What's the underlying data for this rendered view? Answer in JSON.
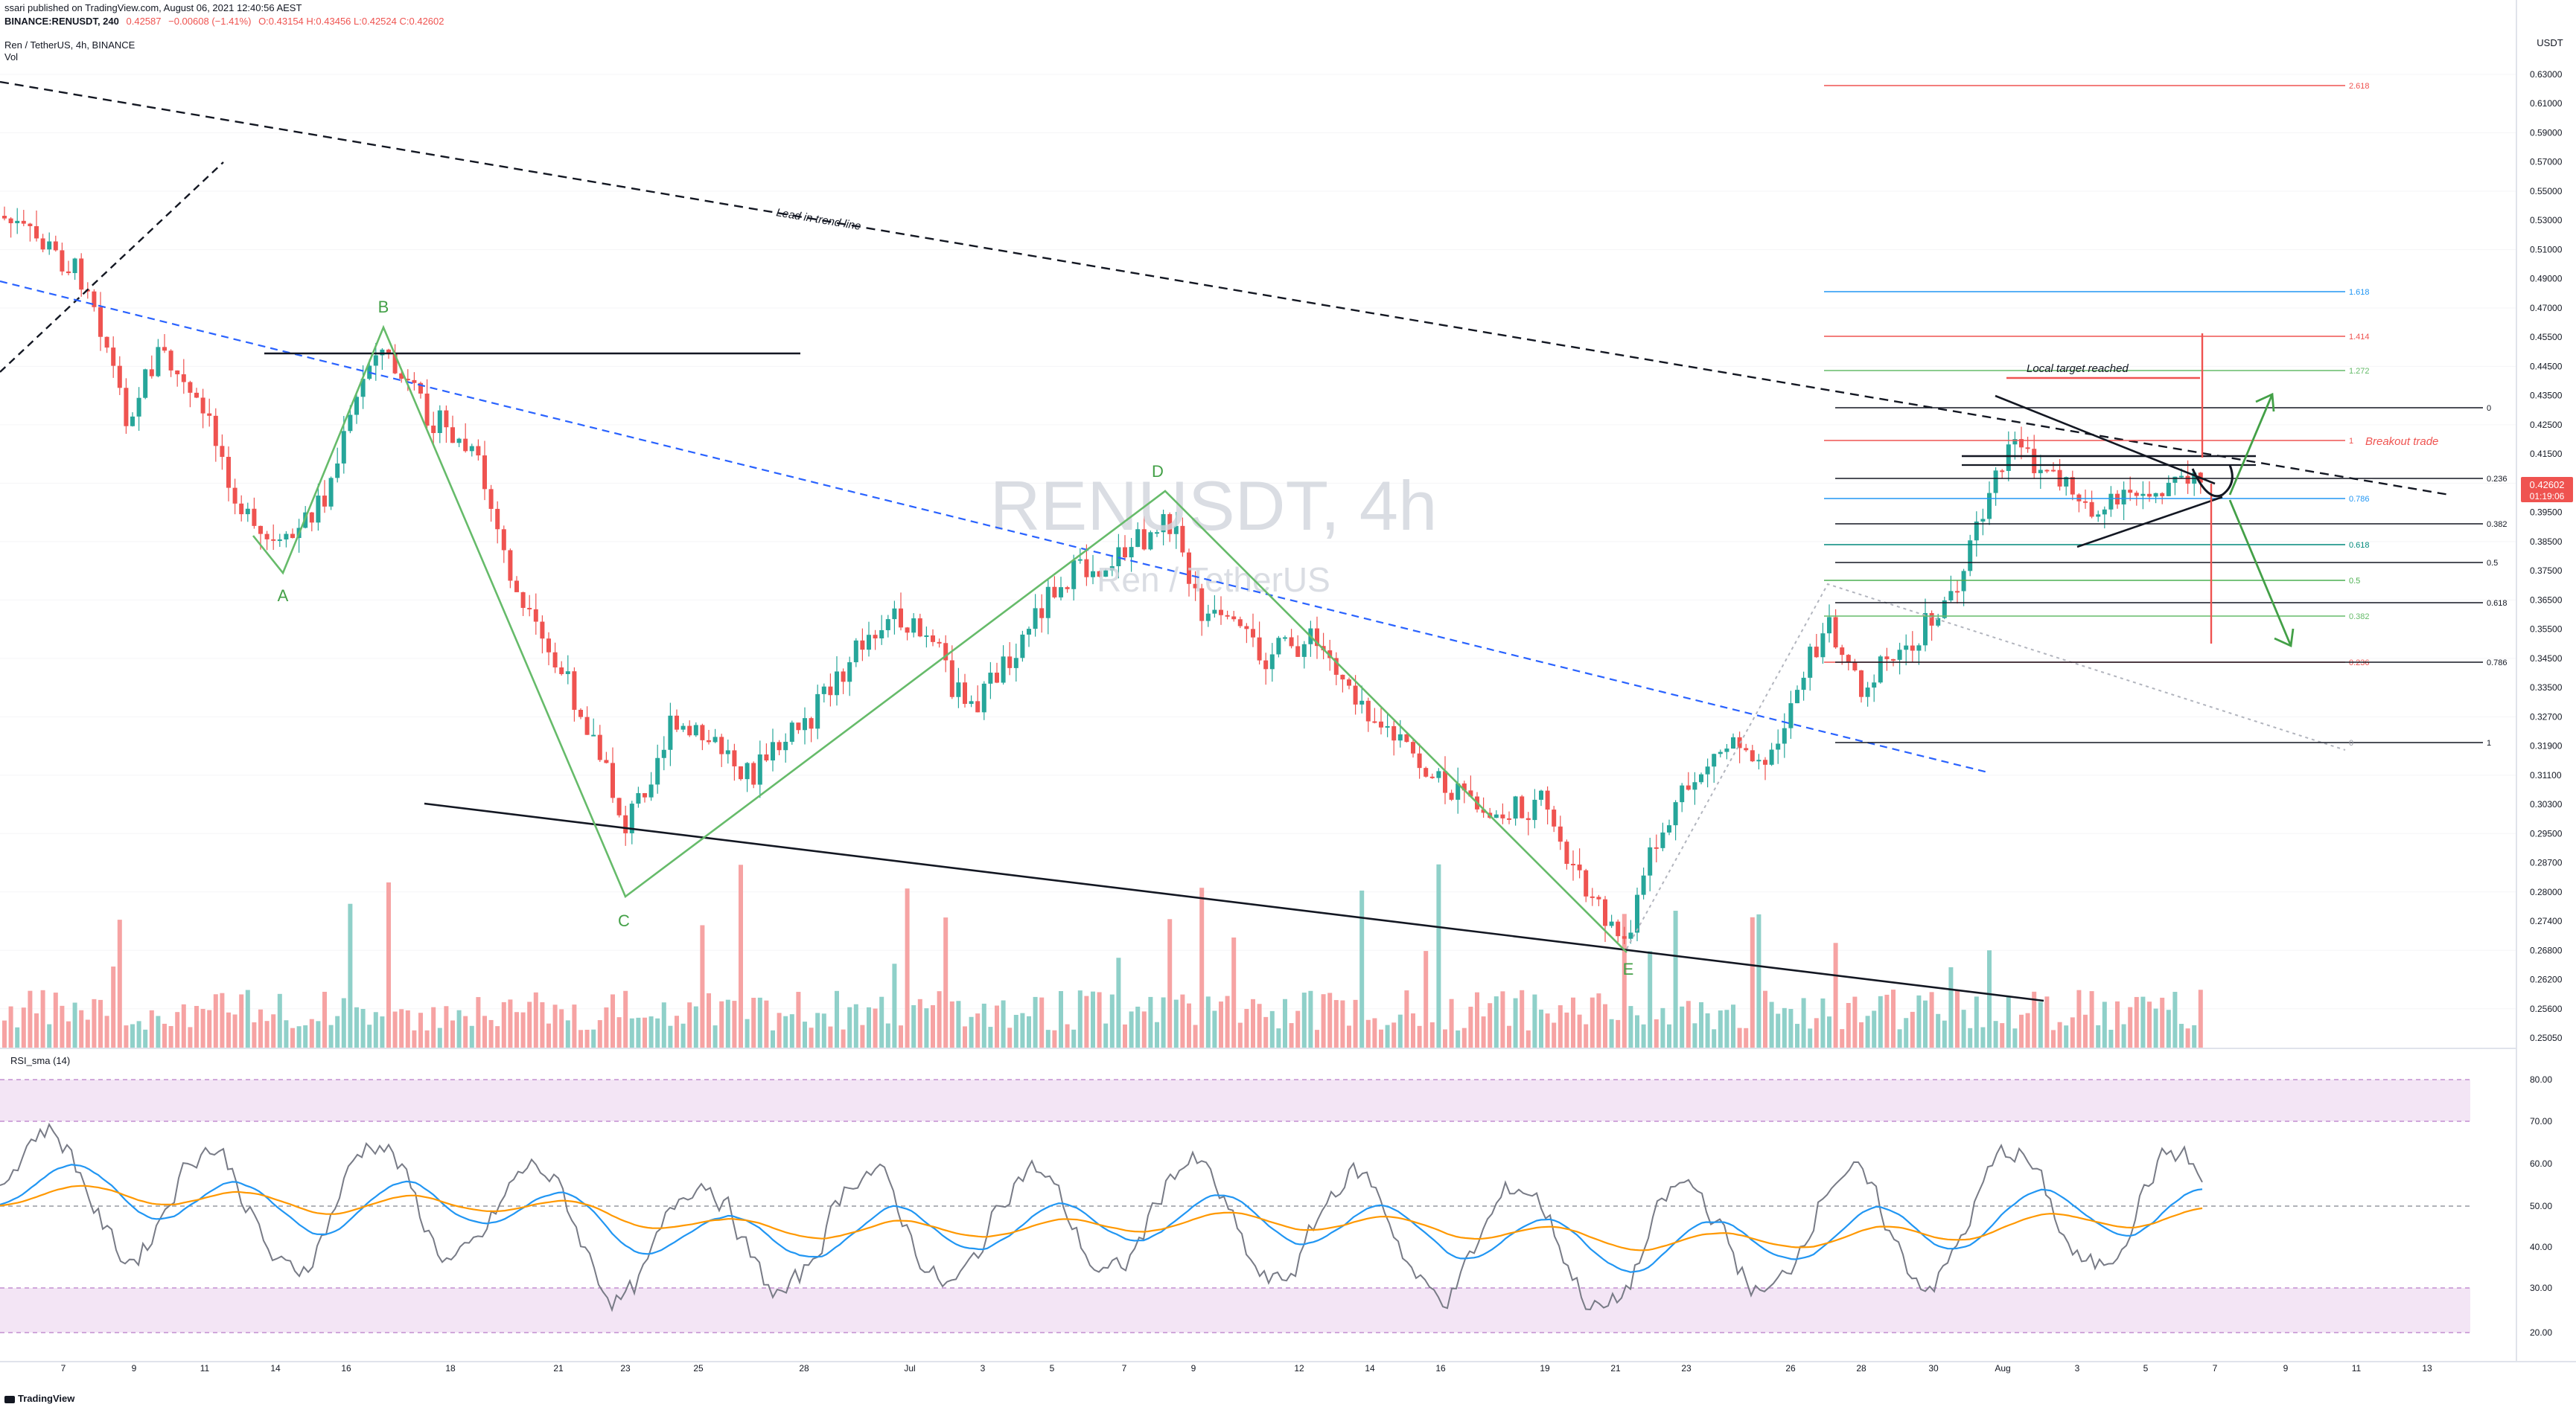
{
  "header": {
    "published": "ssari published on TradingView.com, August 06, 2021 12:40:56 AEST",
    "symbol": "BINANCE:RENUSDT, 240",
    "last": "0.42587",
    "change": "−0.00608 (−1.41%)",
    "open": "O:0.43154",
    "high": "H:0.43456",
    "low": "L:0.42524",
    "close": "C:0.42602",
    "series_title": "Ren / TetherUS, 4h, BINANCE",
    "volume_label": "Vol"
  },
  "watermark": {
    "ticker": "RENUSDT, 4h",
    "name": "Ren / TetherUS"
  },
  "price_axis": {
    "unit": "USDT",
    "labels": [
      "0.63000",
      "0.61000",
      "0.59000",
      "0.57000",
      "0.55000",
      "0.53000",
      "0.51000",
      "0.49000",
      "0.47000",
      "0.45500",
      "0.44500",
      "0.43500",
      "0.42500",
      "0.41500",
      "0.40500",
      "0.39500",
      "0.38500",
      "0.37500",
      "0.36500",
      "0.35500",
      "0.34500",
      "0.33500",
      "0.32700",
      "0.31900",
      "0.31100",
      "0.30300",
      "0.29500",
      "0.28700",
      "0.28000",
      "0.27400",
      "0.26800",
      "0.26200",
      "0.25600",
      "0.25050"
    ],
    "last_price": "0.42602",
    "countdown": "01:19:06"
  },
  "rsi_axis": {
    "title": "RSI_sma (14)",
    "labels": [
      "80.00",
      "70.00",
      "60.00",
      "50.00",
      "40.00",
      "30.00",
      "20.00"
    ]
  },
  "time_axis": {
    "labels": [
      "7",
      "9",
      "11",
      "14",
      "16",
      "18",
      "21",
      "23",
      "25",
      "28",
      "Jul",
      "3",
      "5",
      "7",
      "9",
      "12",
      "14",
      "16",
      "19",
      "21",
      "23",
      "26",
      "28",
      "30",
      "Aug",
      "3",
      "5",
      "7",
      "9",
      "11",
      "13"
    ]
  },
  "annotations": {
    "wave_labels": [
      "A",
      "B",
      "C",
      "D",
      "E"
    ],
    "lead_trend": "Lead in trend line",
    "local_target": "Local target reached",
    "breakout": "Breakout trade",
    "fib_upper_levels": [
      "2.618",
      "1.618",
      "1.414",
      "1.272",
      "1",
      "0.786",
      "0.618",
      "0.5",
      "0.382",
      "0.236"
    ],
    "fib_retrace_levels": [
      "0",
      "0.236",
      "0.382",
      "0.5",
      "0.618",
      "0.786",
      "1"
    ],
    "fib_small_zero": "0"
  },
  "footer": {
    "brand": "TradingView"
  },
  "colors": {
    "up": "#26a69a",
    "down": "#ef5350",
    "vol_up": "#8fd0c9",
    "vol_down": "#f6a3a3",
    "elliott": "#66bb6a",
    "trend_blue": "#2962ff",
    "rsi": "#787b86",
    "rsi_sma_blue": "#2196f3",
    "rsi_sma_orange": "#ff9800",
    "rsi_band": "#f3e5f5"
  }
}
